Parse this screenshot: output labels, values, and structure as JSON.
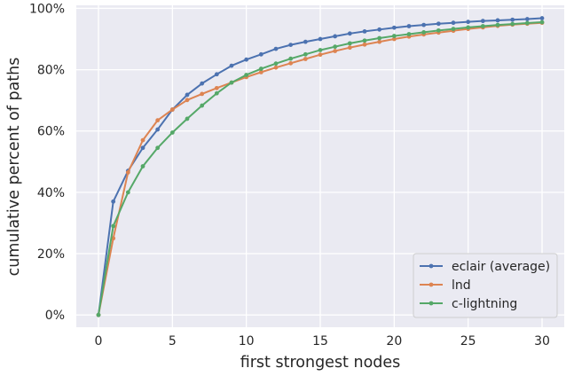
{
  "chart_data": {
    "type": "line",
    "title": "",
    "xlabel": "first strongest nodes",
    "ylabel": "cumulative percent of paths",
    "xlim": [
      -1.5,
      31.5
    ],
    "ylim": [
      -4,
      101
    ],
    "xticks": [
      0,
      5,
      10,
      15,
      20,
      25,
      30
    ],
    "xtick_labels": [
      "0",
      "5",
      "10",
      "15",
      "20",
      "25",
      "30"
    ],
    "yticks": [
      0,
      20,
      40,
      60,
      80,
      100
    ],
    "ytick_labels": [
      "0%",
      "20%",
      "40%",
      "60%",
      "80%",
      "100%"
    ],
    "grid": true,
    "legend_position": "lower-right",
    "x": [
      0,
      1,
      2,
      3,
      4,
      5,
      6,
      7,
      8,
      9,
      10,
      11,
      12,
      13,
      14,
      15,
      16,
      17,
      18,
      19,
      20,
      21,
      22,
      23,
      24,
      25,
      26,
      27,
      28,
      29,
      30
    ],
    "series": [
      {
        "name": "eclair (average)",
        "color": "#4c72b0",
        "values": [
          0,
          37,
          47,
          54.5,
          60.5,
          67,
          71.8,
          75.5,
          78.5,
          81.3,
          83.3,
          85,
          86.8,
          88.1,
          89.1,
          90,
          90.9,
          91.8,
          92.5,
          93.1,
          93.7,
          94.2,
          94.6,
          95,
          95.3,
          95.6,
          95.9,
          96.1,
          96.3,
          96.5,
          96.8
        ]
      },
      {
        "name": "lnd",
        "color": "#dd8452",
        "values": [
          0,
          25,
          46.5,
          57,
          63.5,
          67,
          70.1,
          72.1,
          74,
          75.8,
          77.6,
          79.2,
          80.7,
          82.1,
          83.5,
          84.9,
          86.1,
          87.2,
          88.2,
          89.1,
          90,
          90.8,
          91.5,
          92.1,
          92.7,
          93.3,
          93.8,
          94.3,
          94.7,
          95,
          95.3
        ]
      },
      {
        "name": "c-lightning",
        "color": "#55a868",
        "values": [
          0,
          29,
          40,
          48.5,
          54.5,
          59.5,
          64,
          68.3,
          72.3,
          75.8,
          78.3,
          80.3,
          82,
          83.6,
          85,
          86.4,
          87.5,
          88.6,
          89.5,
          90.3,
          91,
          91.6,
          92.2,
          92.8,
          93.3,
          93.8,
          94.2,
          94.6,
          94.9,
          95.2,
          95.5
        ]
      }
    ]
  }
}
